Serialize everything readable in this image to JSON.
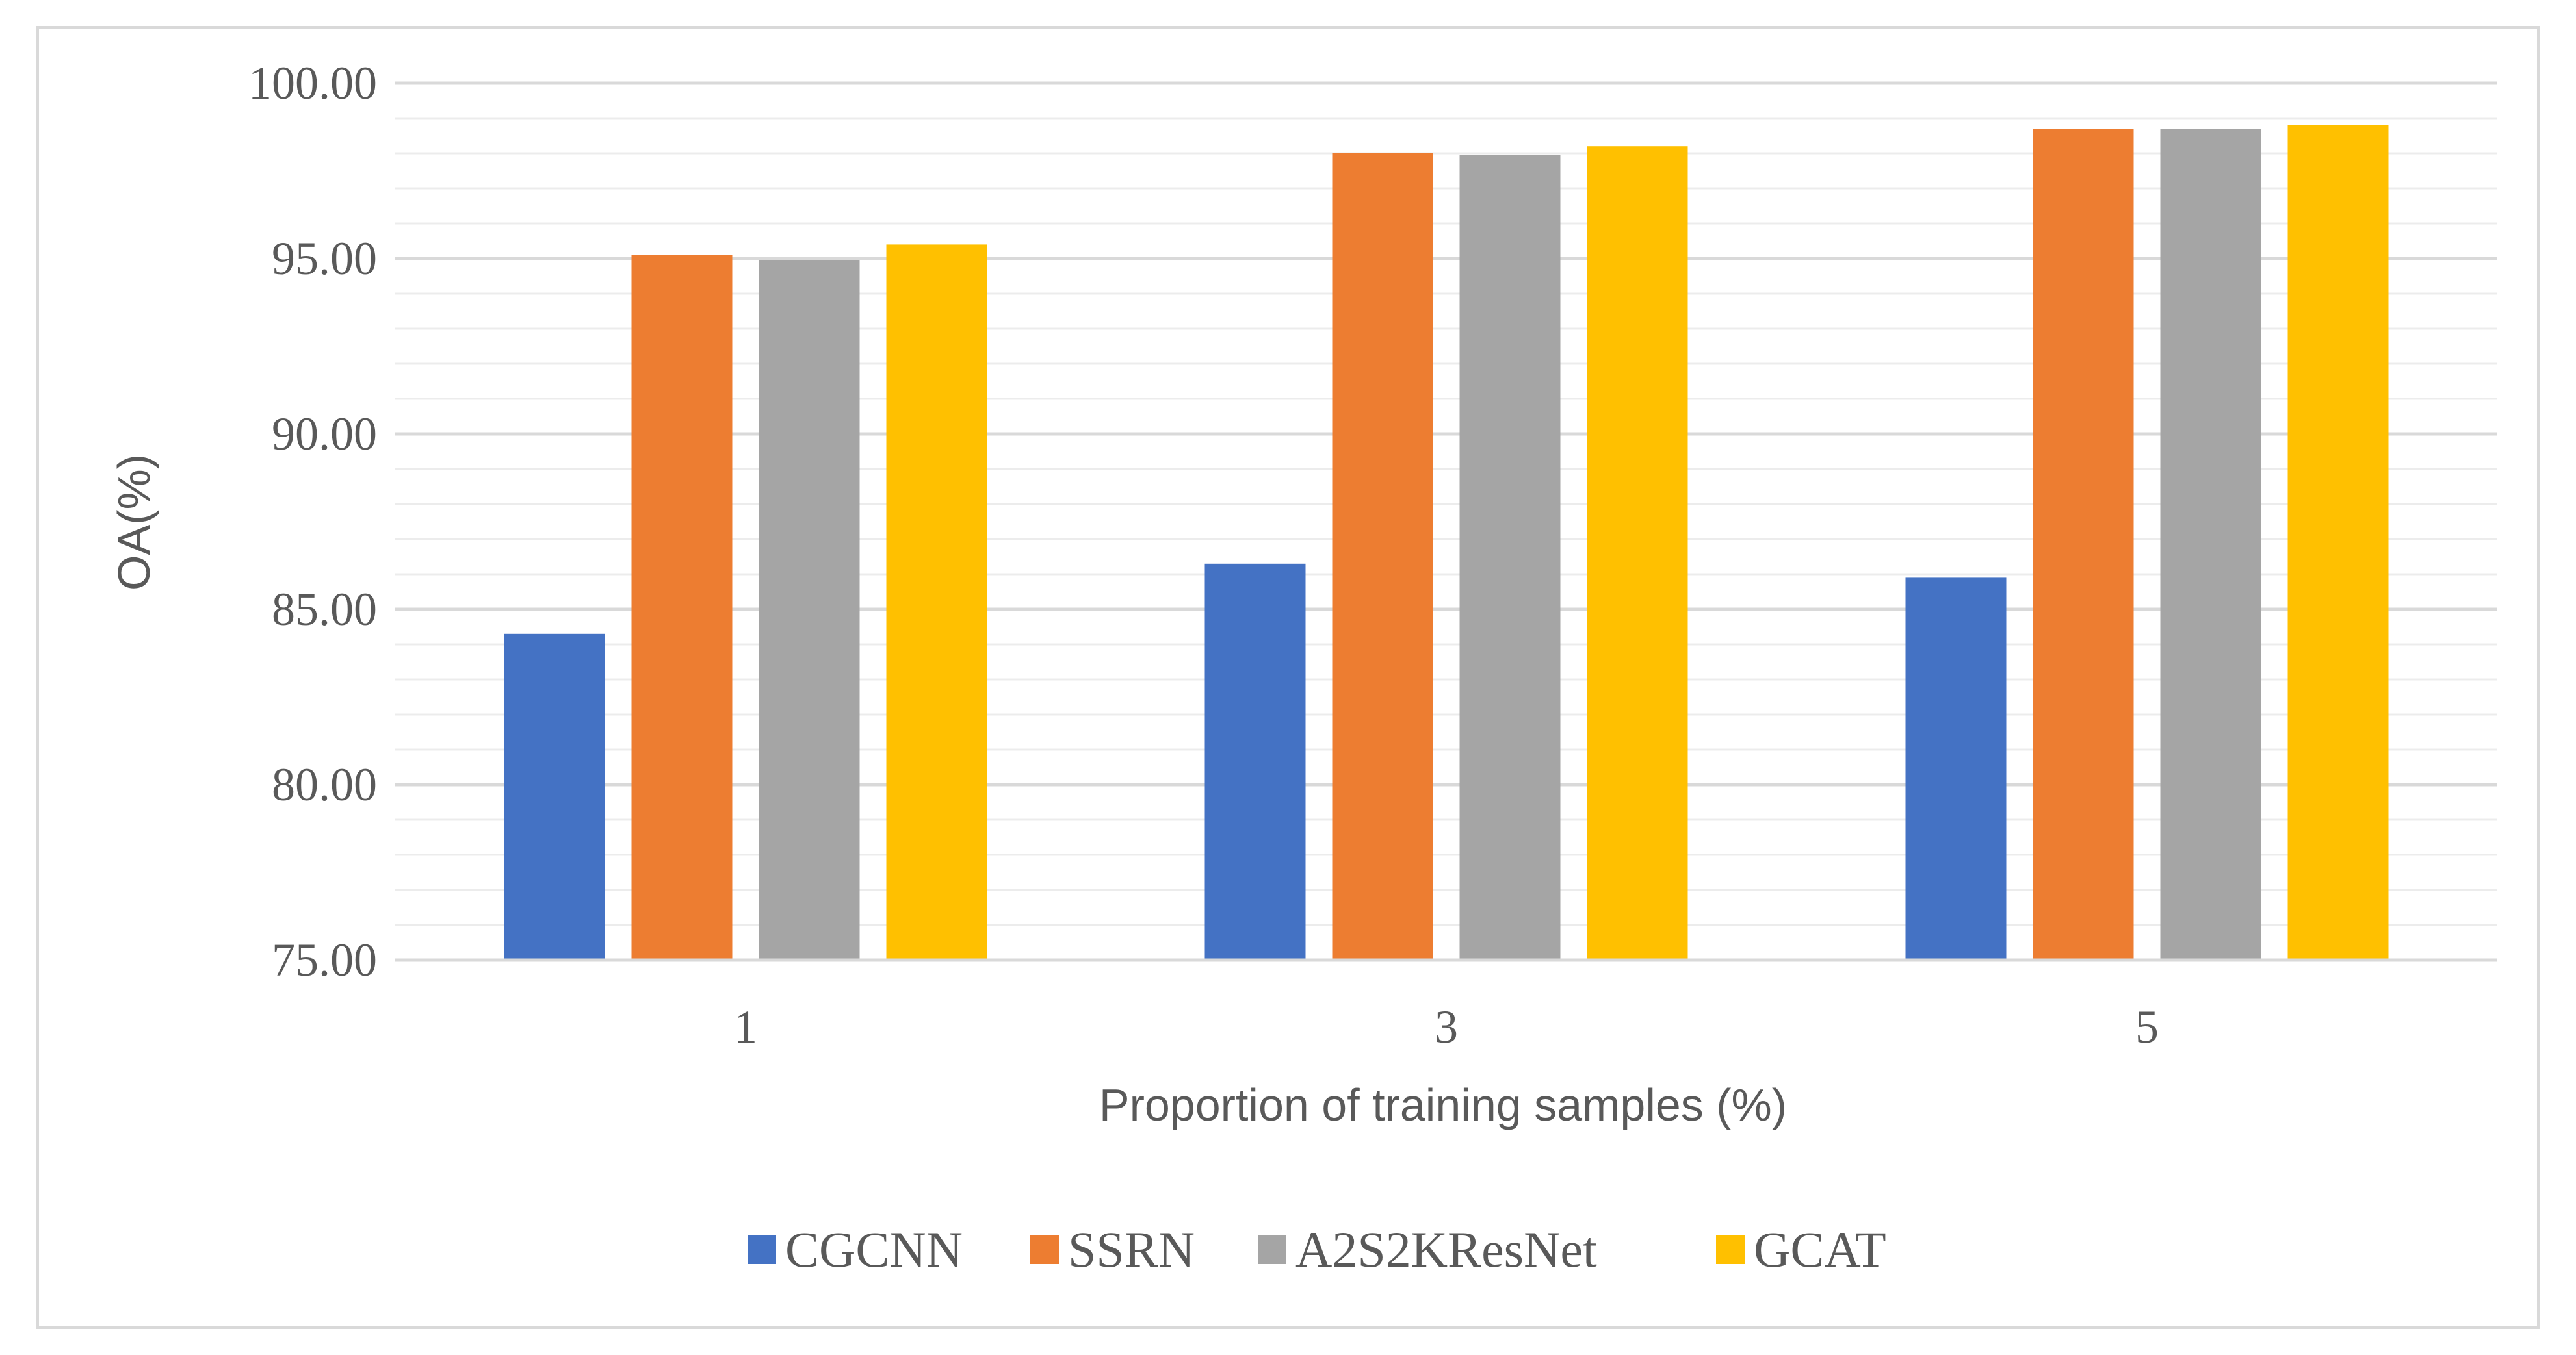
{
  "chart_data": {
    "type": "bar",
    "title": "",
    "xlabel": "Proportion of training samples (%)",
    "ylabel": "OA(%)",
    "categories": [
      "1",
      "3",
      "5"
    ],
    "ylim": [
      75,
      100
    ],
    "y_ticks": [
      "75.00",
      "80.00",
      "85.00",
      "90.00",
      "95.00",
      "100.00"
    ],
    "y_minor_step": 1,
    "grid": true,
    "legend_position": "bottom",
    "series": [
      {
        "name": "CGCNN",
        "color": "#4472c4",
        "values": [
          84.3,
          86.3,
          85.9
        ]
      },
      {
        "name": "SSRN",
        "color": "#ed7d31",
        "values": [
          95.1,
          98.0,
          98.7
        ]
      },
      {
        "name": "A2S2KResNet",
        "color": "#a5a5a5",
        "values": [
          94.95,
          97.95,
          98.7
        ]
      },
      {
        "name": "GCAT",
        "color": "#ffc000",
        "values": [
          95.4,
          98.2,
          98.8
        ]
      }
    ]
  }
}
